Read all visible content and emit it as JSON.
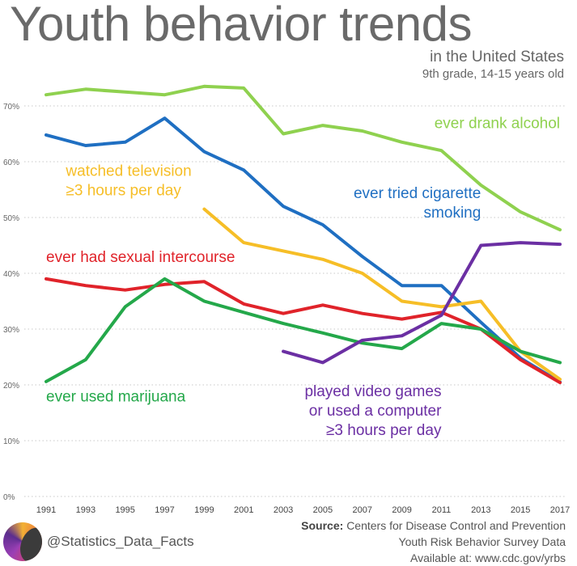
{
  "header": {
    "title": "Youth behavior trends",
    "subtitle": "in the United States",
    "subtitle2": "9th grade, 14-15 years old"
  },
  "footer": {
    "handle": "@Statistics_Data_Facts",
    "source_label": "Source:",
    "source_text": "Centers for Disease Control and Prevention",
    "source_line2": "Youth Risk Behavior Survey Data",
    "source_line3": "Available at: www.cdc.gov/yrbs",
    "logo_icon": "statistics-logo-icon"
  },
  "chart_data": {
    "type": "line",
    "title": "Youth behavior trends",
    "subtitle": "in the United States",
    "xlabel": "",
    "ylabel": "",
    "x": [
      1991,
      1993,
      1995,
      1997,
      1999,
      2001,
      2003,
      2005,
      2007,
      2009,
      2011,
      2013,
      2015,
      2017
    ],
    "xtick_labels": [
      "1991",
      "1993",
      "1995",
      "1997",
      "1999",
      "2001",
      "2003",
      "2005",
      "2007",
      "2009",
      "2011",
      "2013",
      "2015",
      "2017"
    ],
    "yticks": [
      0,
      10,
      20,
      30,
      40,
      50,
      60,
      70
    ],
    "ytick_labels": [
      "0%",
      "10%",
      "20%",
      "30%",
      "40%",
      "50%",
      "60%",
      "70%"
    ],
    "ylim": [
      0,
      73
    ],
    "grid": "horizontal dotted",
    "legend": "labels placed beside lines",
    "series": [
      {
        "name": "ever drank alcohol",
        "color": "#8fd14f",
        "values": [
          72.0,
          73.0,
          72.5,
          72.0,
          73.5,
          73.2,
          65.0,
          66.5,
          65.5,
          63.5,
          62.0,
          55.8,
          51.0,
          47.8
        ]
      },
      {
        "name": "ever tried cigarette smoking",
        "color": "#1f6fc2",
        "values": [
          64.8,
          62.9,
          63.5,
          67.8,
          61.8,
          58.5,
          52.0,
          48.7,
          43.0,
          37.8,
          37.8,
          31.2,
          24.8,
          20.5
        ]
      },
      {
        "name": "watched television ≥3 hours per day",
        "color": "#f6be27",
        "values": [
          null,
          null,
          null,
          null,
          51.5,
          45.5,
          44.0,
          42.5,
          40.0,
          35.0,
          34.0,
          35.0,
          26.0,
          21.0
        ]
      },
      {
        "name": "ever had sexual intercourse",
        "color": "#e0232a",
        "values": [
          39.0,
          37.8,
          37.0,
          38.0,
          38.5,
          34.5,
          32.8,
          34.3,
          32.8,
          31.8,
          33.0,
          30.0,
          24.5,
          20.4
        ]
      },
      {
        "name": "ever used marijuana",
        "color": "#24a84a",
        "values": [
          20.6,
          24.5,
          34.0,
          39.0,
          35.0,
          33.0,
          31.0,
          29.3,
          27.5,
          26.5,
          31.0,
          30.0,
          26.0,
          24.0
        ]
      },
      {
        "name": "played video games or used a computer ≥3 hours per day",
        "color": "#6b2fa3",
        "values": [
          null,
          null,
          null,
          null,
          null,
          null,
          26.0,
          24.0,
          28.0,
          28.8,
          32.5,
          45.0,
          45.5,
          45.2
        ]
      }
    ],
    "annotations": [
      {
        "lines": [
          "ever drank alcohol"
        ],
        "color": "#8fd14f",
        "anchor": "end",
        "x": 2017,
        "y": 66.0
      },
      {
        "lines": [
          "watched television",
          "≥3 hours per day"
        ],
        "color": "#f6be27",
        "anchor": "start",
        "x": 1992,
        "y": 57.5
      },
      {
        "lines": [
          "ever tried cigarette",
          "smoking"
        ],
        "color": "#1f6fc2",
        "anchor": "end",
        "x": 2013,
        "y": 53.5
      },
      {
        "lines": [
          "ever had sexual intercourse"
        ],
        "color": "#e0232a",
        "anchor": "start",
        "x": 1991,
        "y": 42.0
      },
      {
        "lines": [
          "ever used marijuana"
        ],
        "color": "#24a84a",
        "anchor": "start",
        "x": 1991,
        "y": 17.0
      },
      {
        "lines": [
          "played video games",
          "or used a computer",
          "≥3 hours per day"
        ],
        "color": "#6b2fa3",
        "anchor": "end",
        "x": 2011,
        "y": 18.0
      }
    ]
  }
}
